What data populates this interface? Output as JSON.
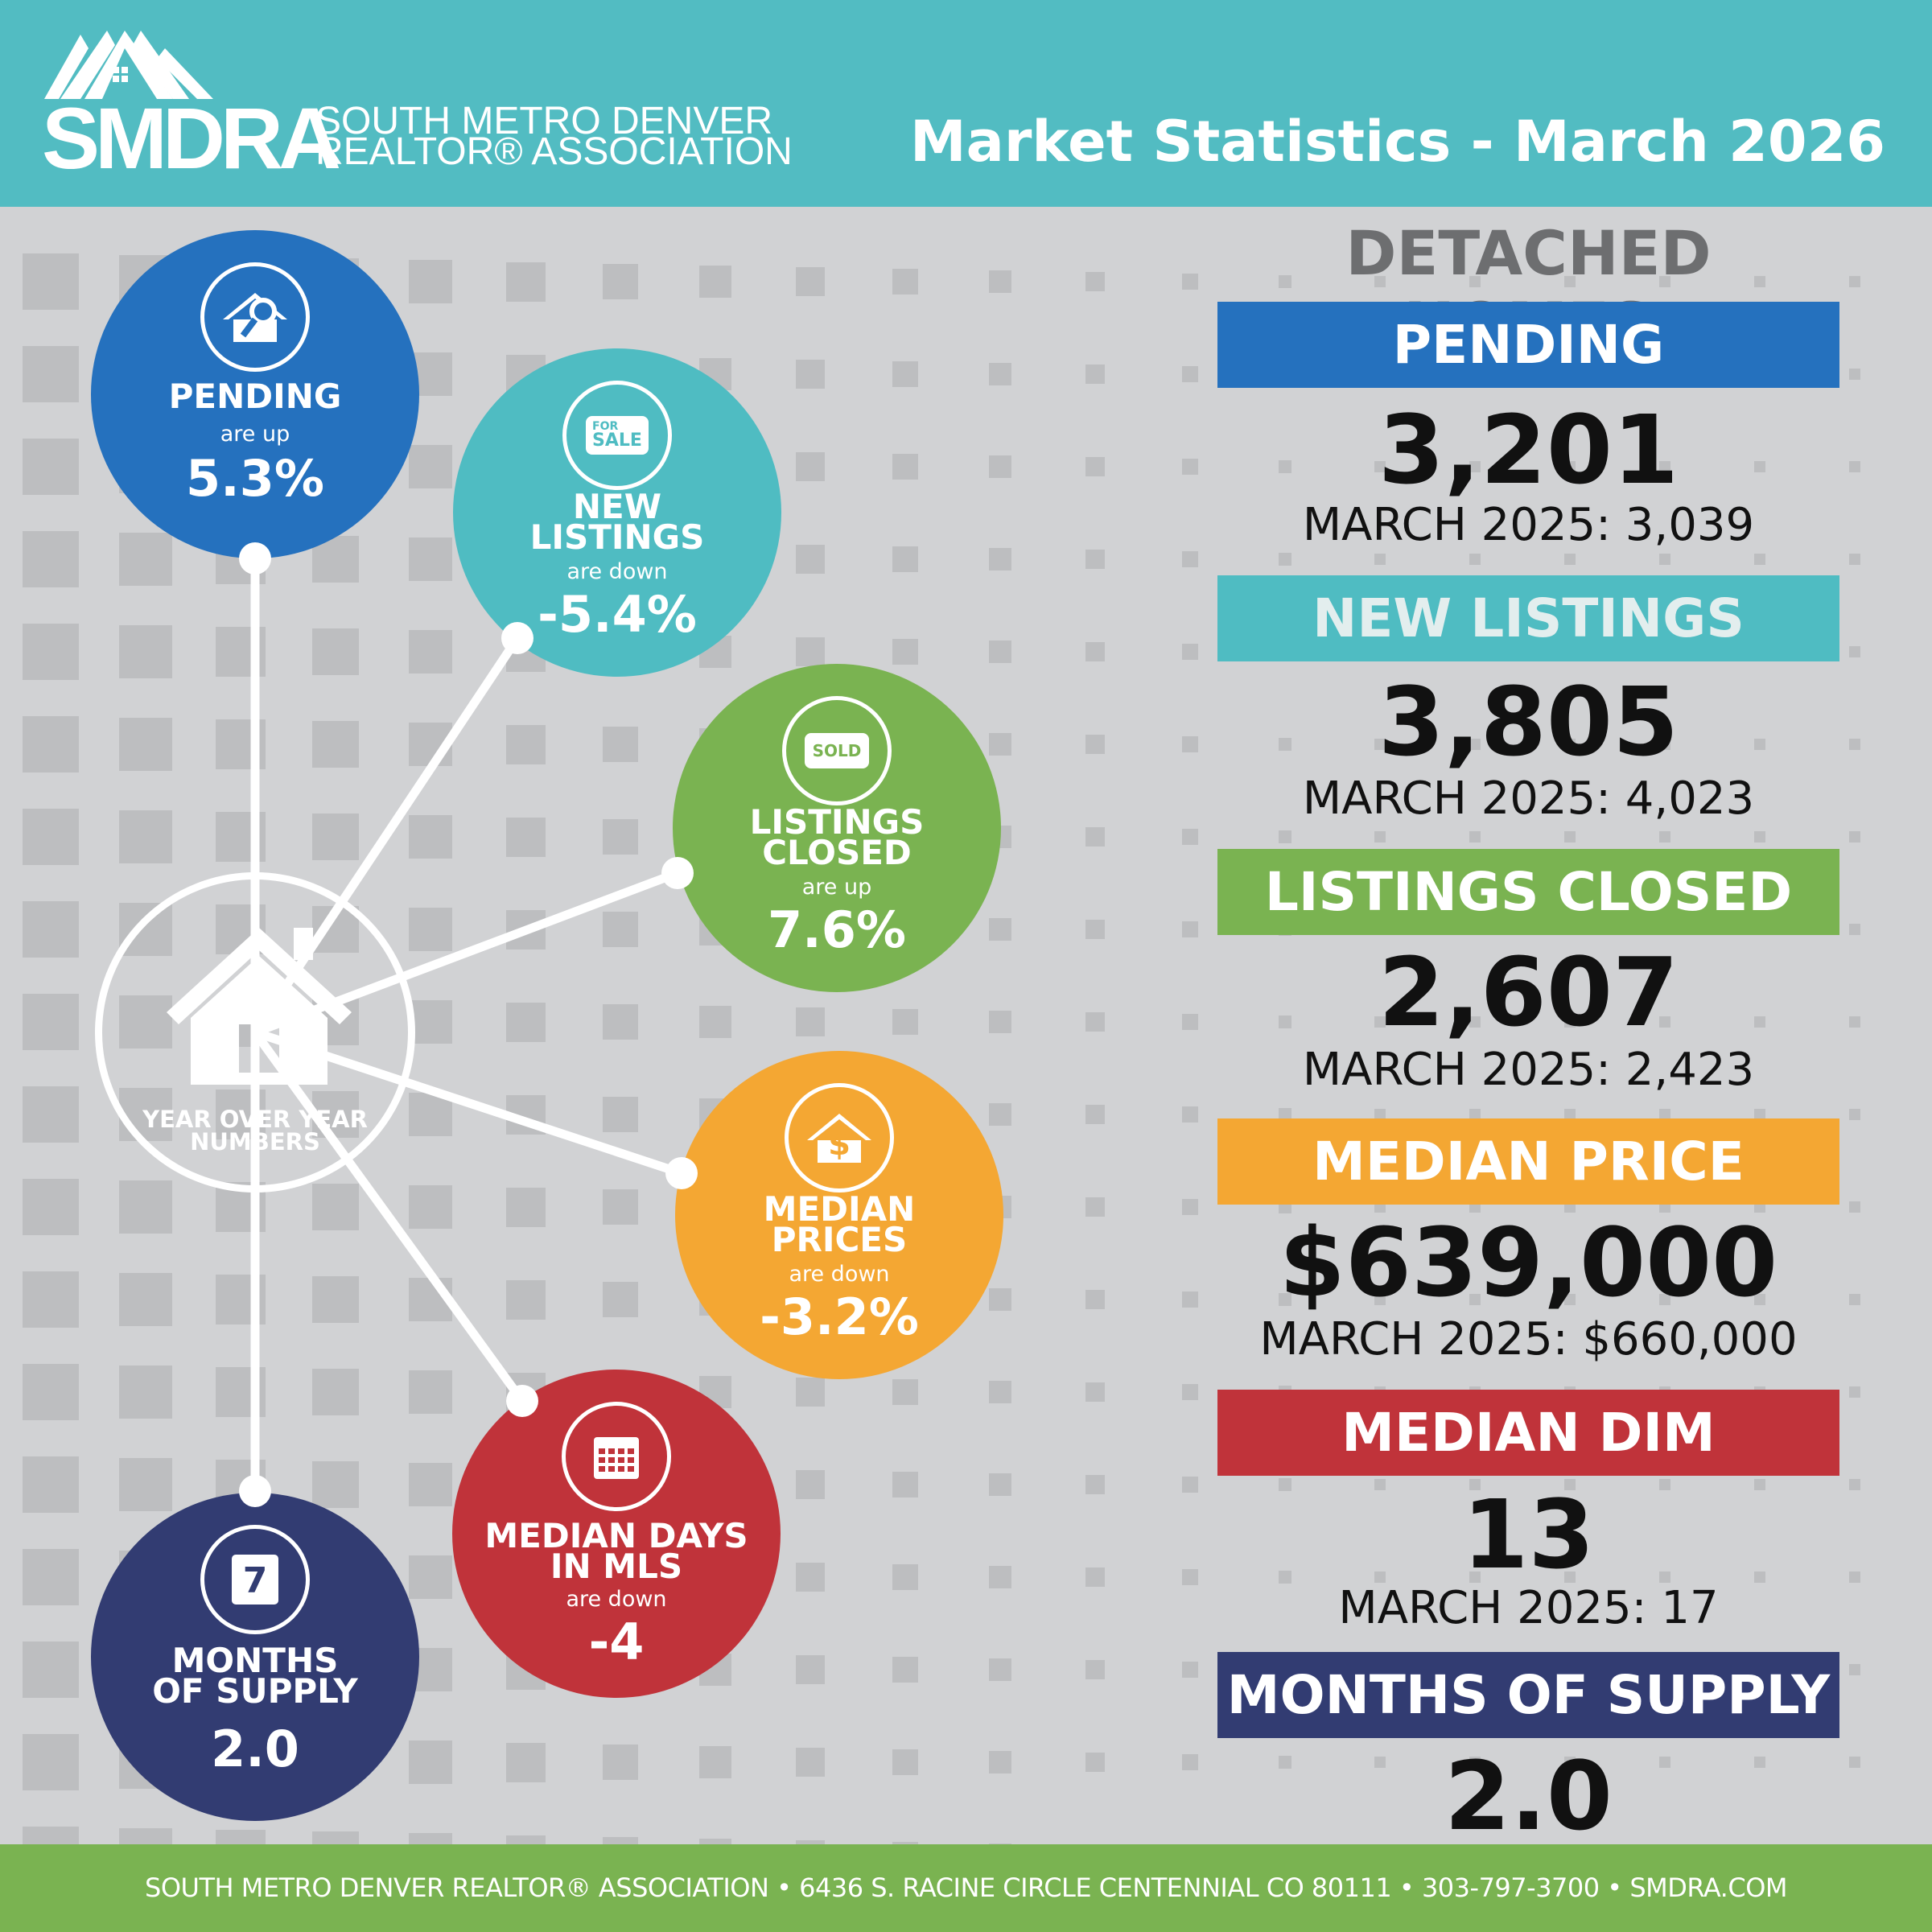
{
  "header": {
    "logo_acronym": "SMDRA",
    "logo_line1": "SOUTH METRO DENVER",
    "logo_line2": "REALTOR® ASSOCIATION",
    "title": "Market Statistics - March 2026"
  },
  "colors": {
    "header": "#52bcc2",
    "pending": "#2571be",
    "new_listings": "#4fbcc2",
    "closed": "#7ab351",
    "median_price": "#f4a733",
    "dim": "#c0333a",
    "supply": "#323c72",
    "background": "#d1d2d4"
  },
  "circles": {
    "pending": {
      "label": "PENDING",
      "direction": "are up",
      "value": "5.3%",
      "icon": "house-search-icon"
    },
    "new_listings": {
      "label1": "NEW",
      "label2": "LISTINGS",
      "direction": "are down",
      "value": "-5.4%",
      "icon": "for-sale-sign-icon",
      "icon_text1": "FOR",
      "icon_text2": "SALE"
    },
    "closed": {
      "label1": "LISTINGS",
      "label2": "CLOSED",
      "direction": "are up",
      "value": "7.6%",
      "icon": "sold-sign-icon",
      "icon_text": "SOLD"
    },
    "median_price": {
      "label1": "MEDIAN",
      "label2": "PRICES",
      "direction": "are down",
      "value": "-3.2%",
      "icon": "house-dollar-icon"
    },
    "dim": {
      "label1": "MEDIAN DAYS",
      "label2": "IN MLS",
      "direction": "are down",
      "value": "-4",
      "icon": "calendar-icon"
    },
    "supply": {
      "label1": "MONTHS",
      "label2": "OF SUPPLY",
      "value": "2.0",
      "icon": "calendar-7-icon",
      "icon_text": "7"
    },
    "center": {
      "label1": "YEAR OVER YEAR",
      "label2": "NUMBERS",
      "icon": "house-icon"
    }
  },
  "panel": {
    "heading": "DETACHED HOMES",
    "stats": [
      {
        "label": "PENDING",
        "value": "3,201",
        "prior": "MARCH 2025: 3,039"
      },
      {
        "label": "NEW LISTINGS",
        "value": "3,805",
        "prior": "MARCH 2025: 4,023"
      },
      {
        "label": "LISTINGS CLOSED",
        "value": "2,607",
        "prior": "MARCH 2025: 2,423"
      },
      {
        "label": "MEDIAN PRICE",
        "value": "$639,000",
        "prior": "MARCH 2025: $660,000"
      },
      {
        "label": "MEDIAN DIM",
        "value": "13",
        "prior": "MARCH 2025: 17"
      },
      {
        "label": "MONTHS OF SUPPLY",
        "value": "2.0"
      }
    ]
  },
  "footer": {
    "text": "SOUTH METRO DENVER REALTOR® ASSOCIATION  •  6436 S. RACINE CIRCLE CENTENNIAL CO 80111  •  303-797-3700  •  SMDRA.COM"
  }
}
